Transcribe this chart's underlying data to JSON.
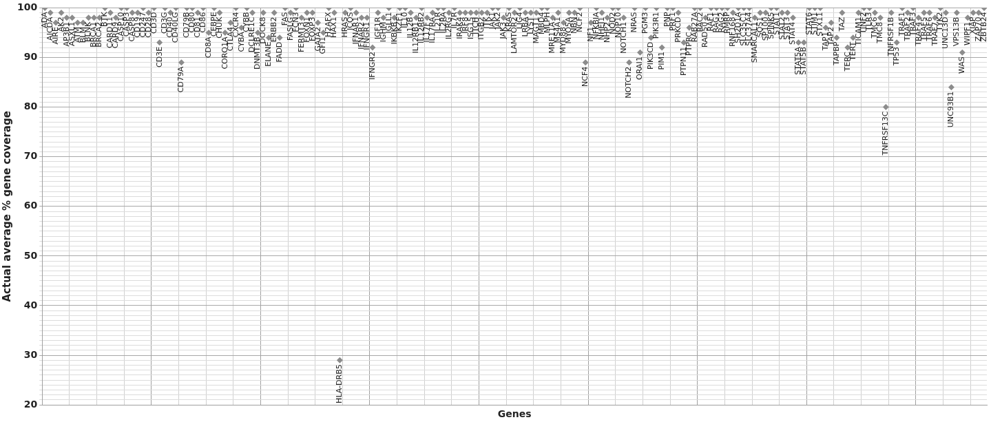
{
  "chart_data": {
    "type": "scatter",
    "xlabel": "Genes",
    "ylabel": "Actual average % gene coverage",
    "categories": [
      "ADA",
      "AICDA",
      "AIRE",
      "AK2",
      "AP3B1",
      "ASXL1",
      "ATM",
      "BLM",
      "BLNK",
      "BRCA1",
      "BRCA2",
      "BTK",
      "CARD11",
      "CARD9",
      "CASP10",
      "CASP3",
      "CASP8",
      "CD19",
      "CD247",
      "CD28",
      "CD3D",
      "CD3E",
      "CD3G",
      "CD40",
      "CD40LG",
      "CD79A",
      "CD79B",
      "CD80",
      "CD81",
      "CD86",
      "CD8A",
      "CEBPE",
      "CHUK",
      "CORO1A",
      "CTLA4",
      "CXCR4",
      "CYBA",
      "CYBB",
      "DCLRE1C",
      "DNMT3B",
      "DOCK8",
      "ELANE",
      "ERBB2",
      "FADD",
      "FAS",
      "FASLG",
      "FCN3",
      "FERMT3",
      "FOXN1",
      "FOXP3",
      "GATA2",
      "GFI1",
      "H2AFX",
      "HAX1",
      "HLA-DRB5",
      "HRAS",
      "ICOS",
      "IFNAR1",
      "IFNAR2",
      "IFNGR1",
      "IFNGR2",
      "IGF1R",
      "IGHM",
      "IGLL1",
      "IKBKB",
      "IKZF1",
      "IL10",
      "IL12B",
      "IL12RB1",
      "IL12RB2",
      "IL17F",
      "IL17RA",
      "IL21R",
      "IL2RA",
      "IL2RG",
      "IL7R",
      "IRAK4",
      "IRF8",
      "ISG15",
      "ITCH",
      "ITGB2",
      "ITK",
      "JAK1",
      "JAK2",
      "JAK3",
      "KRAS",
      "LAMTOR2",
      "LIG4",
      "LRBA",
      "LYST",
      "MAGT1",
      "MBD4",
      "MLPH",
      "MRE11A",
      "MS4A1",
      "MYD88",
      "MYO5A",
      "NBN",
      "NCF2",
      "NCF4",
      "NF1",
      "NFKBIA",
      "NHEJ1",
      "NHP2",
      "NOD2",
      "NOP10",
      "NOTCH1",
      "NOTCH2",
      "NRAS",
      "ORAI1",
      "PGM3",
      "PIK3CD",
      "PIK3R1",
      "PIM1",
      "PNP",
      "PRF1",
      "PRKCD",
      "PTPN11",
      "PTPRC",
      "RAB27A",
      "RAC2",
      "RAD50",
      "RAF1",
      "RAG1",
      "RAG2",
      "RMRP",
      "RNF168",
      "SH2D1A",
      "SLC35C1",
      "SLC37A4",
      "SMARCAL1",
      "SOS1",
      "SP100",
      "SPINK5",
      "STAT1",
      "STAT2",
      "STAT3",
      "STAT4",
      "STAT5A",
      "STAT5B",
      "STAT6",
      "STIM1",
      "STX11",
      "TAP1",
      "TAP2",
      "TAPBP",
      "TAZ",
      "TERC",
      "TERT",
      "TICAM1",
      "TINF2",
      "TLR3",
      "TMC6",
      "TMC8",
      "TNFRSF13C",
      "TNFRSF1B",
      "TP53",
      "TRAF1",
      "TRAF2",
      "TRAF3",
      "TRAF4",
      "TRAF5",
      "TRAF6",
      "TRAF7",
      "TYK2",
      "UNC13D",
      "UNC93B1",
      "VPS13B",
      "WAS",
      "WIPF1",
      "XIAP",
      "ZAP70",
      "ZBTB24"
    ],
    "values": [
      100,
      99,
      97,
      99,
      98,
      98,
      97,
      97,
      98,
      98,
      98,
      100,
      99,
      98,
      100,
      100,
      99,
      99,
      100,
      99,
      100,
      93,
      100,
      99,
      100,
      89,
      100,
      100,
      99,
      100,
      95,
      100,
      99,
      95,
      97,
      100,
      96,
      100,
      99,
      95,
      99,
      94,
      99,
      94,
      100,
      99,
      100,
      98,
      99,
      99,
      97,
      95,
      100,
      99,
      29,
      99,
      100,
      99,
      98,
      98,
      92,
      99,
      98,
      100,
      98,
      100,
      100,
      99,
      98,
      100,
      98,
      99,
      100,
      100,
      99,
      100,
      99,
      99,
      99,
      99,
      99,
      99,
      100,
      100,
      98,
      100,
      99,
      100,
      99,
      99,
      99,
      100,
      100,
      98,
      99,
      97,
      99,
      99,
      100,
      89,
      97,
      100,
      99,
      98,
      100,
      100,
      98,
      89,
      100,
      91,
      100,
      94,
      100,
      92,
      100,
      100,
      99,
      93,
      96,
      100,
      100,
      98,
      100,
      100,
      100,
      100,
      99,
      100,
      100,
      100,
      98,
      99,
      99,
      100,
      100,
      99,
      99,
      98,
      93,
      93,
      100,
      100,
      100,
      96,
      97,
      94,
      99,
      92,
      94,
      99,
      100,
      100,
      99,
      98,
      80,
      99,
      93,
      100,
      99,
      100,
      98,
      99,
      99,
      98,
      100,
      99,
      84,
      99,
      91,
      98,
      99,
      99,
      100
    ],
    "color": "#8c8c8c",
    "marker": "diamond",
    "grid": true,
    "ylim": [
      20,
      100
    ],
    "yticks": [
      20,
      {
        "value": 21,
        "label": null
      },
      {
        "value": 22,
        "label": null
      },
      {
        "value": 23,
        "label": null
      },
      {
        "value": 24,
        "label": null
      },
      {
        "value": 25,
        "label": null
      },
      {
        "value": 26,
        "label": null
      },
      {
        "value": 27,
        "label": null
      },
      {
        "value": 28,
        "label": null
      },
      {
        "value": 29,
        "label": null
      },
      30,
      {
        "value": 31,
        "label": null
      },
      {
        "value": 32,
        "label": null
      },
      {
        "value": 33,
        "label": null
      },
      {
        "value": 34,
        "label": null
      },
      {
        "value": 35,
        "label": null
      },
      {
        "value": 36,
        "label": null
      },
      {
        "value": 37,
        "label": null
      },
      {
        "value": 38,
        "label": null
      },
      {
        "value": 39,
        "label": null
      },
      40,
      {
        "value": 41,
        "label": null
      },
      {
        "value": 42,
        "label": null
      },
      {
        "value": 43,
        "label": null
      },
      {
        "value": 44,
        "label": null
      },
      {
        "value": 45,
        "label": null
      },
      {
        "value": 46,
        "label": null
      },
      {
        "value": 47,
        "label": null
      },
      {
        "value": 48,
        "label": null
      },
      {
        "value": 49,
        "label": null
      },
      50,
      {
        "value": 51,
        "label": null
      },
      {
        "value": 52,
        "label": null
      },
      {
        "value": 53,
        "label": null
      },
      {
        "value": 54,
        "label": null
      },
      {
        "value": 55,
        "label": null
      },
      {
        "value": 56,
        "label": null
      },
      {
        "value": 57,
        "label": null
      },
      {
        "value": 58,
        "label": null
      },
      {
        "value": 59,
        "label": null
      },
      60,
      {
        "value": 61,
        "label": null
      },
      {
        "value": 62,
        "label": null
      },
      {
        "value": 63,
        "label": null
      },
      {
        "value": 64,
        "label": null
      },
      {
        "value": 65,
        "label": null
      },
      {
        "value": 66,
        "label": null
      },
      {
        "value": 67,
        "label": null
      },
      {
        "value": 68,
        "label": null
      },
      {
        "value": 69,
        "label": null
      },
      70,
      {
        "value": 71,
        "label": null
      },
      {
        "value": 72,
        "label": null
      },
      {
        "value": 73,
        "label": null
      },
      {
        "value": 74,
        "label": null
      },
      {
        "value": 75,
        "label": null
      },
      {
        "value": 76,
        "label": null
      },
      {
        "value": 77,
        "label": null
      },
      {
        "value": 78,
        "label": null
      },
      {
        "value": 79,
        "label": null
      },
      80,
      {
        "value": 81,
        "label": null
      },
      {
        "value": 82,
        "label": null
      },
      {
        "value": 83,
        "label": null
      },
      {
        "value": 84,
        "label": null
      },
      {
        "value": 85,
        "label": null
      },
      {
        "value": 86,
        "label": null
      },
      {
        "value": 87,
        "label": null
      },
      {
        "value": 88,
        "label": null
      },
      {
        "value": 89,
        "label": null
      },
      90,
      {
        "value": 91,
        "label": null
      },
      {
        "value": 92,
        "label": null
      },
      {
        "value": 93,
        "label": null
      },
      {
        "value": 94,
        "label": null
      },
      {
        "value": 95,
        "label": null
      },
      {
        "value": 96,
        "label": null
      },
      {
        "value": 97,
        "label": null
      },
      {
        "value": 98,
        "label": null
      },
      {
        "value": 99,
        "label": null
      },
      100
    ]
  }
}
